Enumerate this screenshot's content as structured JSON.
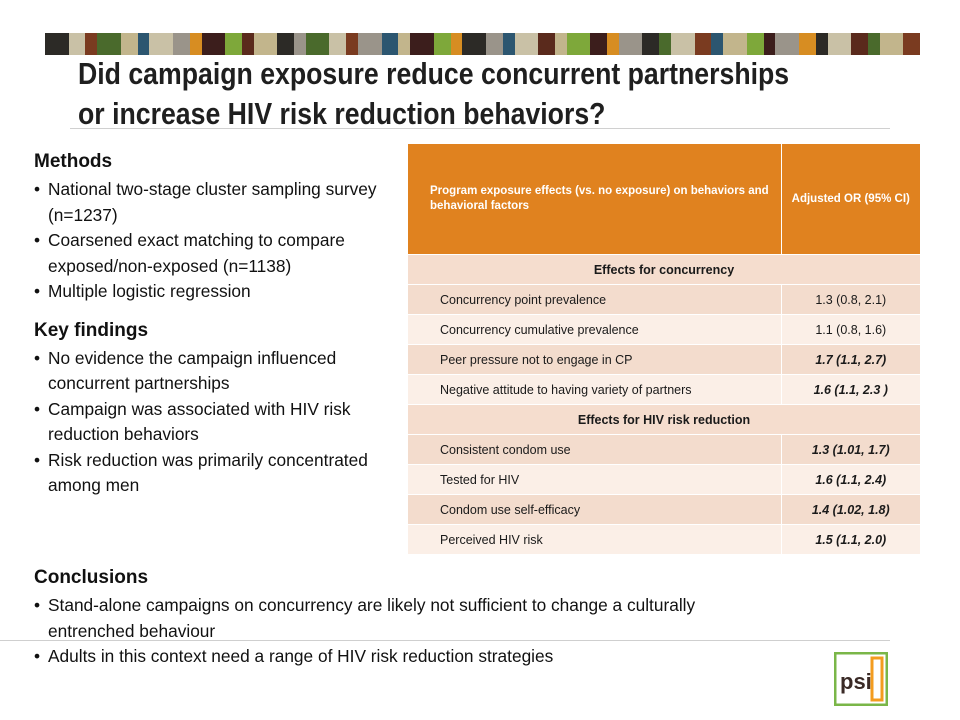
{
  "stripe_colors": [
    "#2c2a26",
    "#c9c1a6",
    "#7a3b20",
    "#4a6a2c",
    "#c2b58c",
    "#2c5670",
    "#c9c1a6",
    "#9a948a",
    "#d78d22",
    "#3c1e1c",
    "#7ea83a",
    "#5a2a1c",
    "#c2b58c",
    "#2c2a26",
    "#9a948a",
    "#4a6a2c",
    "#c9c1a6",
    "#7a3b20",
    "#9a948a",
    "#2c5670",
    "#c2b58c",
    "#3c1e1c",
    "#7ea83a",
    "#d78d22",
    "#2c2a26",
    "#9a948a",
    "#2c5670",
    "#c9c1a6",
    "#5a2a1c",
    "#c2b58c",
    "#7ea83a",
    "#3c1e1c",
    "#d78d22",
    "#9a948a",
    "#2c2a26",
    "#4a6a2c",
    "#c9c1a6",
    "#7a3b20",
    "#2c5670",
    "#c2b58c",
    "#7ea83a",
    "#3c1e1c",
    "#9a948a",
    "#d78d22",
    "#2c2a26",
    "#c9c1a6",
    "#5a2a1c",
    "#4a6a2c",
    "#c2b58c",
    "#7a3b20"
  ],
  "title": "Did campaign exposure reduce concurrent partnerships or increase HIV risk reduction behaviors?",
  "methods": {
    "heading": "Methods",
    "items": [
      "National two-stage cluster sampling survey (n=1237)",
      "Coarsened exact matching to compare exposed/non-exposed (n=1138)",
      "Multiple logistic regression"
    ]
  },
  "key_findings": {
    "heading": "Key findings",
    "items": [
      "No evidence the campaign influenced concurrent partnerships",
      "Campaign was associated with HIV risk reduction behaviors",
      "Risk reduction was primarily concentrated among men"
    ]
  },
  "conclusions": {
    "heading": "Conclusions",
    "items": [
      "Stand-alone campaigns on concurrency are likely not sufficient to change a culturally entrenched behaviour",
      "Adults in this context need a range of HIV risk reduction strategies"
    ]
  },
  "table": {
    "header_effects": "Program exposure effects (vs. no exposure) on behaviors and behavioral factors",
    "header_or": "Adjusted OR (95% CI)",
    "sections": [
      {
        "title": "Effects for concurrency",
        "rows": [
          {
            "label": "Concurrency point prevalence",
            "value": "1.3 (0.8, 2.1)",
            "significant": false
          },
          {
            "label": "Concurrency cumulative prevalence",
            "value": "1.1 (0.8, 1.6)",
            "significant": false
          },
          {
            "label": "Peer pressure not to engage in CP",
            "value": "1.7 (1.1, 2.7)",
            "significant": true
          },
          {
            "label": "Negative attitude to having variety of partners",
            "value": "1.6 (1.1, 2.3 )",
            "significant": true
          }
        ]
      },
      {
        "title": "Effects for HIV risk reduction",
        "rows": [
          {
            "label": "Consistent condom use",
            "value": "1.3 (1.01, 1.7)",
            "significant": true
          },
          {
            "label": "Tested for HIV",
            "value": "1.6 (1.1, 2.4)",
            "significant": true
          },
          {
            "label": "Condom use self-efficacy",
            "value": "1.4 (1.02, 1.8)",
            "significant": true
          },
          {
            "label": "Perceived HIV risk",
            "value": "1.5 (1.1, 2.0)",
            "significant": true
          }
        ]
      }
    ]
  },
  "logo": {
    "text": "psi",
    "green": "#7ab648",
    "orange": "#f39c1f"
  }
}
